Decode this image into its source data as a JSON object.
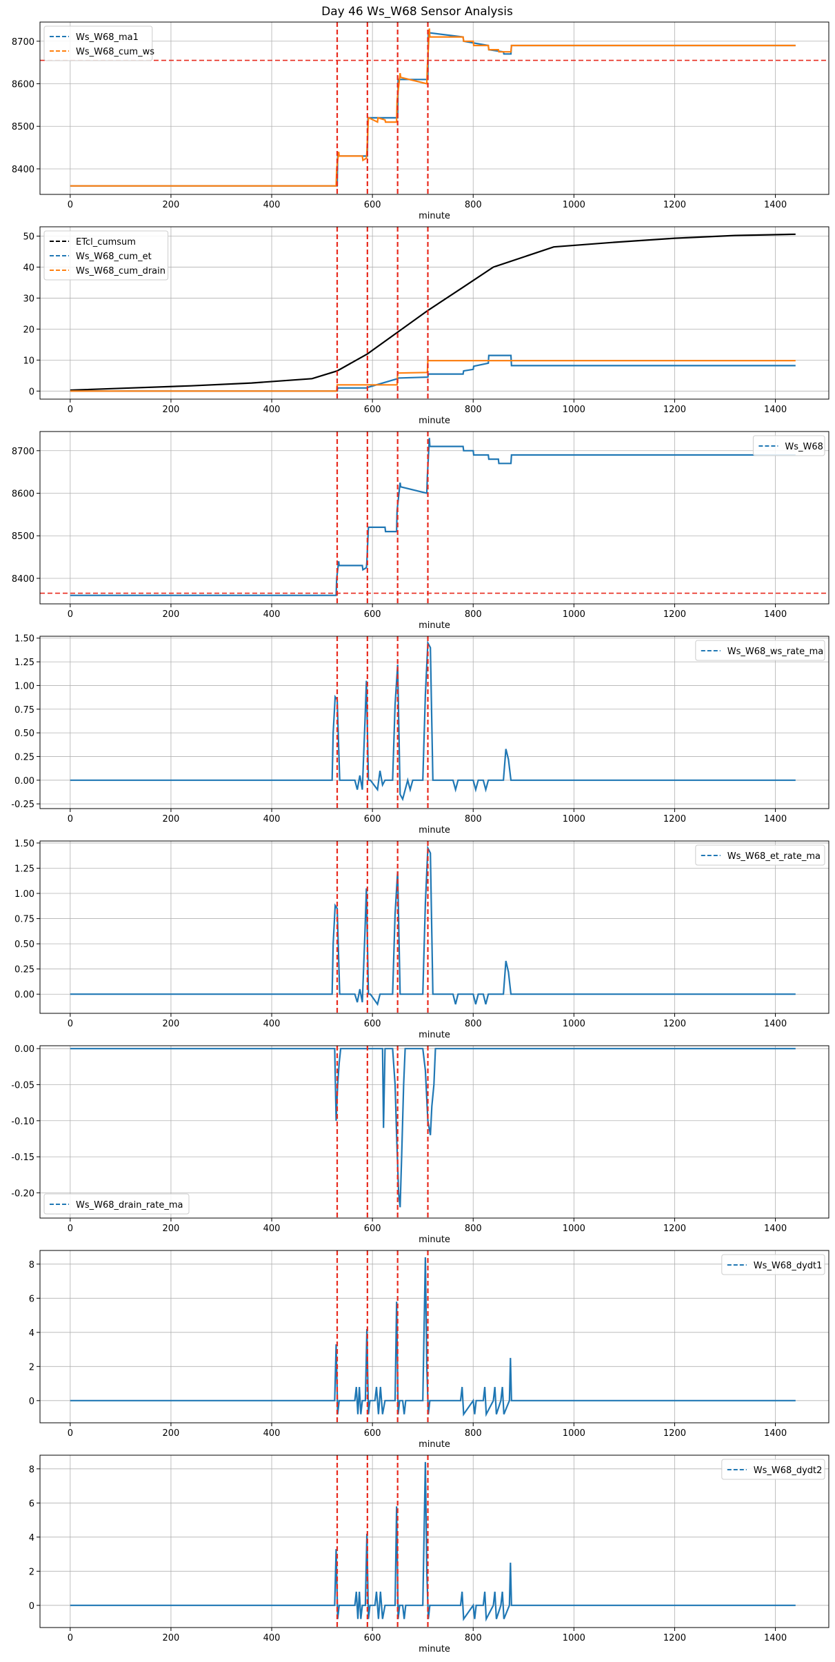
{
  "figure_title": "Day 46 Ws_W68 Sensor Analysis",
  "colors": {
    "blue": "#1f77b4",
    "orange": "#ff7f0e",
    "black": "#000000",
    "red": "#e8291c",
    "grid": "#b0b0b0"
  },
  "chart_data": [
    {
      "type": "line",
      "xlabel": "minute",
      "xlim": [
        -60,
        1506
      ],
      "ylim": [
        8340,
        8745
      ],
      "xticks": [
        0,
        200,
        400,
        600,
        800,
        1000,
        1200,
        1400
      ],
      "yticks": [
        8400,
        8500,
        8600,
        8700
      ],
      "legend_loc": "top-left",
      "event_lines": [
        530,
        590,
        650,
        710
      ],
      "hline": 8655,
      "series": [
        {
          "name": "Ws_W68_ma1",
          "color": "#1f77b4",
          "x": [
            0,
            530,
            531,
            590,
            591,
            650,
            651,
            710,
            711,
            780,
            781,
            830,
            831,
            860,
            861,
            875,
            876,
            1440
          ],
          "y": [
            8360,
            8360,
            8430,
            8430,
            8520,
            8520,
            8610,
            8610,
            8720,
            8710,
            8700,
            8690,
            8680,
            8675,
            8670,
            8670,
            8690,
            8690
          ]
        },
        {
          "name": "Ws_W68_cum_ws",
          "color": "#ff7f0e",
          "x": [
            0,
            528,
            529,
            533,
            534,
            580,
            581,
            588,
            589,
            592,
            593,
            610,
            611,
            625,
            626,
            648,
            649,
            655,
            656,
            708,
            709,
            713,
            714,
            780,
            781,
            800,
            801,
            830,
            831,
            850,
            851,
            875,
            876,
            1440
          ],
          "y": [
            8360,
            8360,
            8400,
            8440,
            8430,
            8430,
            8420,
            8425,
            8440,
            8520,
            8520,
            8510,
            8520,
            8515,
            8510,
            8510,
            8560,
            8625,
            8615,
            8600,
            8640,
            8730,
            8710,
            8710,
            8700,
            8700,
            8690,
            8690,
            8680,
            8680,
            8675,
            8675,
            8690,
            8690
          ]
        }
      ]
    },
    {
      "type": "line",
      "xlabel": "minute",
      "xlim": [
        -60,
        1506
      ],
      "ylim": [
        -2.6,
        53
      ],
      "xticks": [
        0,
        200,
        400,
        600,
        800,
        1000,
        1200,
        1400
      ],
      "yticks": [
        0,
        10,
        20,
        30,
        40,
        50
      ],
      "legend_loc": "top-left",
      "event_lines": [
        530,
        590,
        650,
        710
      ],
      "series": [
        {
          "name": "ETcl_cumsum",
          "color": "#000000",
          "x": [
            0,
            120,
            240,
            360,
            480,
            530,
            590,
            650,
            710,
            780,
            840,
            960,
            1080,
            1200,
            1320,
            1440
          ],
          "y": [
            0.3,
            1.0,
            1.7,
            2.6,
            4.0,
            6.5,
            12.0,
            19.0,
            26.0,
            33.5,
            40.0,
            46.5,
            48.0,
            49.3,
            50.2,
            50.6
          ]
        },
        {
          "name": "Ws_W68_cum_et",
          "color": "#1f77b4",
          "x": [
            0,
            530,
            531,
            590,
            591,
            650,
            651,
            710,
            711,
            780,
            781,
            800,
            801,
            830,
            831,
            875,
            876,
            1440
          ],
          "y": [
            0,
            0,
            1.0,
            1.0,
            1.2,
            4.0,
            4.2,
            4.5,
            5.5,
            5.5,
            6.5,
            7.0,
            8.0,
            9.0,
            11.5,
            11.5,
            8.2,
            8.2
          ]
        },
        {
          "name": "Ws_W68_cum_drain",
          "color": "#ff7f0e",
          "x": [
            0,
            529,
            530,
            589,
            590,
            649,
            650,
            709,
            710,
            1440
          ],
          "y": [
            0,
            0,
            2.0,
            2.0,
            2.0,
            2.0,
            5.8,
            6.0,
            9.8,
            9.8
          ]
        }
      ]
    },
    {
      "type": "line",
      "xlabel": "minute",
      "xlim": [
        -60,
        1506
      ],
      "ylim": [
        8340,
        8745
      ],
      "xticks": [
        0,
        200,
        400,
        600,
        800,
        1000,
        1200,
        1400
      ],
      "yticks": [
        8400,
        8500,
        8600,
        8700
      ],
      "legend_loc": "top-right",
      "event_lines": [
        530,
        590,
        650,
        710
      ],
      "hline": 8365,
      "series": [
        {
          "name": "Ws_W68",
          "color": "#1f77b4",
          "x": [
            0,
            528,
            529,
            533,
            534,
            580,
            581,
            588,
            589,
            592,
            593,
            625,
            626,
            648,
            649,
            655,
            656,
            708,
            709,
            713,
            714,
            780,
            781,
            800,
            801,
            830,
            831,
            850,
            851,
            875,
            876,
            1440
          ],
          "y": [
            8360,
            8360,
            8400,
            8440,
            8430,
            8430,
            8420,
            8425,
            8440,
            8520,
            8520,
            8520,
            8510,
            8510,
            8560,
            8625,
            8615,
            8600,
            8640,
            8730,
            8710,
            8710,
            8700,
            8700,
            8690,
            8690,
            8680,
            8680,
            8670,
            8670,
            8690,
            8690
          ]
        }
      ]
    },
    {
      "type": "line",
      "xlabel": "minute",
      "xlim": [
        -60,
        1506
      ],
      "ylim": [
        -0.3,
        1.52
      ],
      "xticks": [
        0,
        200,
        400,
        600,
        800,
        1000,
        1200,
        1400
      ],
      "yticks": [
        -0.25,
        0.0,
        0.25,
        0.5,
        0.75,
        1.0,
        1.25,
        1.5
      ],
      "legend_loc": "top-right",
      "event_lines": [
        530,
        590,
        650,
        710
      ],
      "series": [
        {
          "name": "Ws_W68_ws_rate_ma",
          "color": "#1f77b4",
          "x": [
            0,
            520,
            522,
            526,
            530,
            535,
            565,
            570,
            575,
            580,
            585,
            588,
            592,
            596,
            610,
            615,
            620,
            625,
            640,
            645,
            650,
            655,
            660,
            670,
            675,
            680,
            700,
            705,
            710,
            715,
            720,
            760,
            765,
            770,
            800,
            805,
            810,
            820,
            825,
            830,
            860,
            865,
            870,
            875,
            1440
          ],
          "y": [
            0,
            0,
            0.5,
            0.88,
            0.85,
            0,
            0,
            -0.1,
            0.05,
            -0.1,
            0.6,
            1.05,
            0,
            0,
            -0.1,
            0.1,
            -0.05,
            0,
            0,
            0.8,
            1.22,
            -0.15,
            -0.2,
            0,
            -0.1,
            0,
            0,
            0.9,
            1.45,
            1.4,
            0,
            0,
            -0.1,
            0,
            0,
            -0.1,
            0,
            0,
            -0.1,
            0,
            0,
            0.33,
            0.22,
            0,
            0
          ]
        }
      ]
    },
    {
      "type": "line",
      "xlabel": "minute",
      "xlim": [
        -60,
        1506
      ],
      "ylim": [
        -0.19,
        1.52
      ],
      "xticks": [
        0,
        200,
        400,
        600,
        800,
        1000,
        1200,
        1400
      ],
      "yticks": [
        0.0,
        0.25,
        0.5,
        0.75,
        1.0,
        1.25,
        1.5
      ],
      "legend_loc": "top-right",
      "event_lines": [
        530,
        590,
        650,
        710
      ],
      "series": [
        {
          "name": "Ws_W68_et_rate_ma",
          "color": "#1f77b4",
          "x": [
            0,
            520,
            522,
            526,
            530,
            535,
            565,
            570,
            575,
            580,
            585,
            588,
            592,
            596,
            610,
            615,
            640,
            645,
            650,
            655,
            700,
            705,
            710,
            715,
            720,
            760,
            765,
            770,
            800,
            805,
            810,
            820,
            825,
            830,
            860,
            865,
            870,
            875,
            1440
          ],
          "y": [
            0,
            0,
            0.5,
            0.88,
            0.85,
            0,
            0,
            -0.08,
            0.05,
            -0.08,
            0.6,
            1.05,
            0,
            0,
            -0.1,
            0,
            0,
            0.8,
            1.22,
            0,
            0,
            0.9,
            1.45,
            1.4,
            0,
            0,
            -0.1,
            0,
            0,
            -0.1,
            0,
            0,
            -0.1,
            0,
            0,
            0.33,
            0.22,
            0,
            0
          ]
        }
      ]
    },
    {
      "type": "line",
      "xlabel": "minute",
      "xlim": [
        -60,
        1506
      ],
      "ylim": [
        -0.235,
        0.004
      ],
      "xticks": [
        0,
        200,
        400,
        600,
        800,
        1000,
        1200,
        1400
      ],
      "yticks": [
        -0.2,
        -0.15,
        -0.1,
        -0.05,
        0.0
      ],
      "legend_loc": "bottom-left",
      "event_lines": [
        530,
        590,
        650,
        710
      ],
      "series": [
        {
          "name": "Ws_W68_drain_rate_ma",
          "color": "#1f77b4",
          "x": [
            0,
            525,
            528,
            531,
            534,
            537,
            620,
            622,
            625,
            640,
            645,
            648,
            652,
            655,
            658,
            662,
            665,
            700,
            705,
            710,
            715,
            718,
            722,
            725,
            1440
          ],
          "y": [
            0,
            0,
            -0.1,
            -0.05,
            -0.02,
            0,
            0,
            -0.11,
            0,
            0,
            -0.05,
            -0.12,
            -0.2,
            -0.22,
            -0.15,
            -0.05,
            0,
            0,
            -0.03,
            -0.1,
            -0.12,
            -0.08,
            -0.05,
            0,
            0
          ]
        }
      ]
    },
    {
      "type": "line",
      "xlabel": "minute",
      "xlim": [
        -60,
        1506
      ],
      "ylim": [
        -1.3,
        8.8
      ],
      "xticks": [
        0,
        200,
        400,
        600,
        800,
        1000,
        1200,
        1400
      ],
      "yticks": [
        0,
        2,
        4,
        6,
        8
      ],
      "legend_loc": "top-right",
      "event_lines": [
        530,
        590,
        650,
        710
      ],
      "series": [
        {
          "name": "Ws_W68_dydt1",
          "color": "#1f77b4",
          "x": [
            0,
            525,
            528,
            531,
            534,
            565,
            568,
            571,
            574,
            577,
            580,
            586,
            589,
            592,
            595,
            605,
            608,
            612,
            616,
            620,
            625,
            645,
            648,
            651,
            654,
            660,
            663,
            666,
            700,
            705,
            708,
            711,
            714,
            775,
            778,
            781,
            800,
            803,
            806,
            820,
            823,
            826,
            840,
            843,
            846,
            855,
            858,
            861,
            872,
            874,
            876,
            1440
          ],
          "y": [
            0,
            0,
            3.3,
            -0.8,
            0,
            0,
            0.8,
            -0.8,
            0.8,
            -0.8,
            0,
            0,
            4.2,
            -0.8,
            0,
            0,
            0.8,
            -0.8,
            0.8,
            -0.8,
            0,
            0,
            5.8,
            -0.8,
            0,
            0,
            -0.8,
            0,
            0,
            8.4,
            2.0,
            -0.8,
            0,
            0,
            0.8,
            -0.8,
            0,
            -0.8,
            0,
            0,
            0.8,
            -0.8,
            0,
            0.8,
            -0.8,
            0,
            0.8,
            -0.8,
            0,
            2.5,
            0,
            0
          ]
        }
      ]
    },
    {
      "type": "line",
      "xlabel": "minute",
      "xlim": [
        -60,
        1506
      ],
      "ylim": [
        -1.3,
        8.8
      ],
      "xticks": [
        0,
        200,
        400,
        600,
        800,
        1000,
        1200,
        1400
      ],
      "yticks": [
        0,
        2,
        4,
        6,
        8
      ],
      "legend_loc": "top-right",
      "event_lines": [
        530,
        590,
        650,
        710
      ],
      "series": [
        {
          "name": "Ws_W68_dydt2",
          "color": "#1f77b4",
          "x": [
            0,
            525,
            528,
            531,
            534,
            565,
            568,
            571,
            574,
            577,
            580,
            586,
            589,
            592,
            595,
            605,
            608,
            612,
            616,
            620,
            625,
            645,
            648,
            651,
            654,
            660,
            663,
            666,
            700,
            705,
            708,
            711,
            714,
            775,
            778,
            781,
            800,
            803,
            806,
            820,
            823,
            826,
            840,
            843,
            846,
            855,
            858,
            861,
            872,
            874,
            876,
            1440
          ],
          "y": [
            0,
            0,
            3.3,
            -0.8,
            0,
            0,
            0.8,
            -0.8,
            0.8,
            -0.8,
            0,
            0,
            4.2,
            -0.8,
            0,
            0,
            0.8,
            -0.8,
            0.8,
            -0.8,
            0,
            0,
            5.8,
            -0.8,
            0,
            0,
            -0.8,
            0,
            0,
            8.4,
            2.0,
            -0.8,
            0,
            0,
            0.8,
            -0.8,
            0,
            -0.8,
            0,
            0,
            0.8,
            -0.8,
            0,
            0.8,
            -0.8,
            0,
            0.8,
            -0.8,
            0,
            2.5,
            0,
            0
          ]
        }
      ]
    }
  ]
}
